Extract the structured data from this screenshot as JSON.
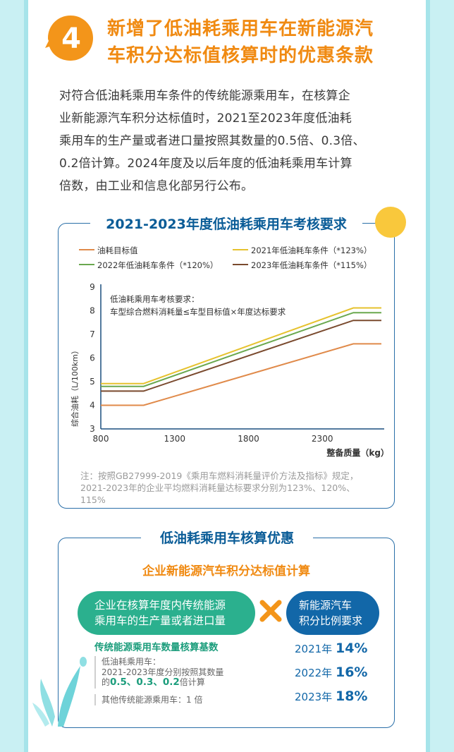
{
  "heading": {
    "number": "4",
    "line1": "新增了低油耗乘用车在新能源汽",
    "line2": "车积分达标值核算时的优惠条款"
  },
  "intro": {
    "lines": [
      "对符合低油耗乘用车条件的传统能源乘用车，在核算企",
      "业新能源汽车积分达标值时，2021至2023年度低油耗",
      "乘用车的生产量或者进口量按照其数量的0.5倍、0.3倍、",
      "0.2倍计算。2024年度及以后年度的低油耗乘用车计算",
      "倍数，由工业和信息化部另行公布。"
    ]
  },
  "chart_section": {
    "title": "2021-2023年度低油耗乘用车考核要求",
    "note_lines": [
      "注：按照GB27999-2019《乘用车燃料消耗量评价方法及指标》规定，",
      "2021-2023年的企业平均燃料消耗量达标要求分别为123%、120%、",
      "115%"
    ]
  },
  "chart_data": {
    "type": "line",
    "xlabel": "整备质量（kg）",
    "ylabel": "综合油耗（L/100km）",
    "xlim": [
      800,
      2700
    ],
    "ylim": [
      3,
      9
    ],
    "x_ticks": [
      "800",
      "1300",
      "1800",
      "2300"
    ],
    "y_ticks": [
      "3",
      "4",
      "5",
      "6",
      "7",
      "8",
      "9"
    ],
    "annotation_line1": "低油耗乘用车考核要求：",
    "annotation_line2": "车型综合燃料消耗量≤车型目标值×年度达标要求",
    "grid": false,
    "legend_position": "top",
    "series": [
      {
        "name": "油耗目标值",
        "color": "#e08a4a",
        "x": [
          800,
          1090,
          2510,
          2700
        ],
        "y": [
          4.0,
          4.0,
          6.6,
          6.6
        ]
      },
      {
        "name": "2021年低油耗车条件（*123%）",
        "color": "#e6c22e",
        "x": [
          800,
          1090,
          2510,
          2700
        ],
        "y": [
          4.92,
          4.92,
          8.12,
          8.12
        ]
      },
      {
        "name": "2022年低油耗车条件（*120%）",
        "color": "#6aa84f",
        "x": [
          800,
          1090,
          2510,
          2700
        ],
        "y": [
          4.8,
          4.8,
          7.92,
          7.92
        ]
      },
      {
        "name": "2023年低油耗车条件（*115%）",
        "color": "#7a4a2e",
        "x": [
          800,
          1090,
          2510,
          2700
        ],
        "y": [
          4.6,
          4.6,
          7.59,
          7.59
        ]
      }
    ]
  },
  "bonus_section": {
    "title": "低油耗乘用车核算优惠",
    "subtitle": "企业新能源汽车积分达标值计算",
    "green_pill": [
      "企业在核算年度内传统能源",
      "乘用车的生产量或者进口量"
    ],
    "blue_pill": [
      "新能源汽车",
      "积分比例要求"
    ],
    "base_title": "传统能源乘用车数量核算基数",
    "low_label": "低油耗乘用车：",
    "low_desc": "2021-2023年度分别按照其数量",
    "low_prefix": "的",
    "low_factors": "0.5、0.3、0.2",
    "low_suffix": "倍计算",
    "other_label": "其他传统能源乘用车：1 倍",
    "ratios": [
      {
        "year": "2021年",
        "value": "14%"
      },
      {
        "year": "2022年",
        "value": "16%"
      },
      {
        "year": "2023年",
        "value": "18%"
      }
    ]
  },
  "colors": {
    "accent_orange": "#f08a12",
    "title_blue": "#0a5c97",
    "green": "#2bb08e",
    "blue": "#1267a8"
  }
}
